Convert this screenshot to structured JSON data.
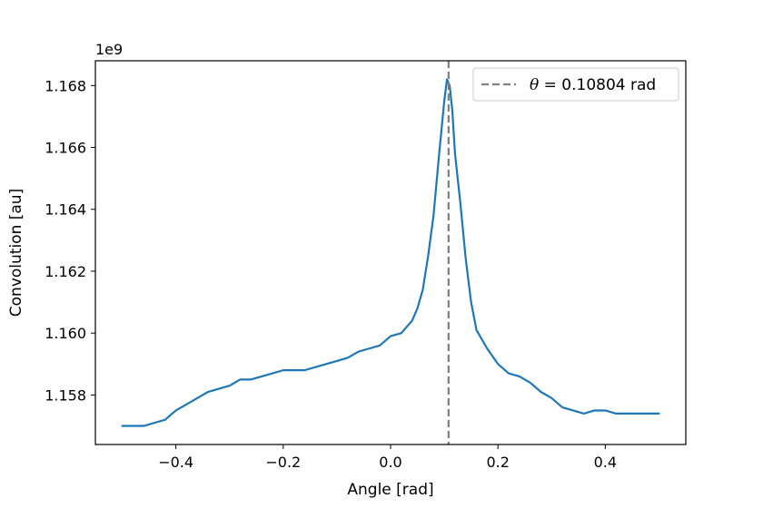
{
  "chart_data": {
    "type": "line",
    "title": "",
    "xlabel": "Angle [rad]",
    "ylabel": "Convolution [au]",
    "y_offset_label": "1e9",
    "xlim": [
      -0.55,
      0.55
    ],
    "ylim": [
      1.1564,
      1.1688
    ],
    "y_scale_factor": 1000000000,
    "x_ticks": [
      -0.4,
      -0.2,
      0.0,
      0.2,
      0.4
    ],
    "x_tick_labels": [
      "−0.4",
      "−0.2",
      "0.0",
      "0.2",
      "0.4"
    ],
    "y_ticks": [
      1.158,
      1.16,
      1.162,
      1.164,
      1.166,
      1.168
    ],
    "y_tick_labels": [
      "1.158",
      "1.160",
      "1.162",
      "1.164",
      "1.166",
      "1.168"
    ],
    "grid": false,
    "legend": {
      "position": "top-right",
      "entries": [
        {
          "symbol": "θ",
          "text": " = 0.10804 rad",
          "style": "dashed",
          "color": "#808080"
        }
      ]
    },
    "vline": {
      "x": 0.10804,
      "color": "#808080",
      "style": "dashed"
    },
    "series": [
      {
        "color": "#1f77b4",
        "x": [
          -0.5,
          -0.48,
          -0.46,
          -0.44,
          -0.42,
          -0.4,
          -0.38,
          -0.36,
          -0.34,
          -0.32,
          -0.3,
          -0.28,
          -0.26,
          -0.24,
          -0.22,
          -0.2,
          -0.18,
          -0.16,
          -0.14,
          -0.12,
          -0.1,
          -0.08,
          -0.06,
          -0.04,
          -0.02,
          0.0,
          0.02,
          0.04,
          0.05,
          0.06,
          0.07,
          0.08,
          0.09,
          0.1,
          0.105,
          0.11,
          0.115,
          0.12,
          0.13,
          0.14,
          0.15,
          0.16,
          0.17,
          0.18,
          0.2,
          0.22,
          0.24,
          0.26,
          0.28,
          0.3,
          0.32,
          0.34,
          0.36,
          0.38,
          0.4,
          0.42,
          0.44,
          0.46,
          0.48,
          0.5
        ],
        "values": [
          1.157,
          1.157,
          1.157,
          1.1571,
          1.1572,
          1.1575,
          1.1577,
          1.1579,
          1.1581,
          1.1582,
          1.1583,
          1.1585,
          1.1585,
          1.1586,
          1.1587,
          1.1588,
          1.1588,
          1.1588,
          1.1589,
          1.159,
          1.1591,
          1.1592,
          1.1594,
          1.1595,
          1.1596,
          1.1599,
          1.16,
          1.1604,
          1.1608,
          1.1614,
          1.1625,
          1.1638,
          1.1657,
          1.1675,
          1.1682,
          1.168,
          1.1672,
          1.1658,
          1.1642,
          1.1624,
          1.161,
          1.1601,
          1.1598,
          1.1595,
          1.159,
          1.1587,
          1.1586,
          1.1584,
          1.1581,
          1.1579,
          1.1576,
          1.1575,
          1.1574,
          1.1575,
          1.1575,
          1.1574,
          1.1574,
          1.1574,
          1.1574,
          1.1574
        ]
      }
    ]
  }
}
